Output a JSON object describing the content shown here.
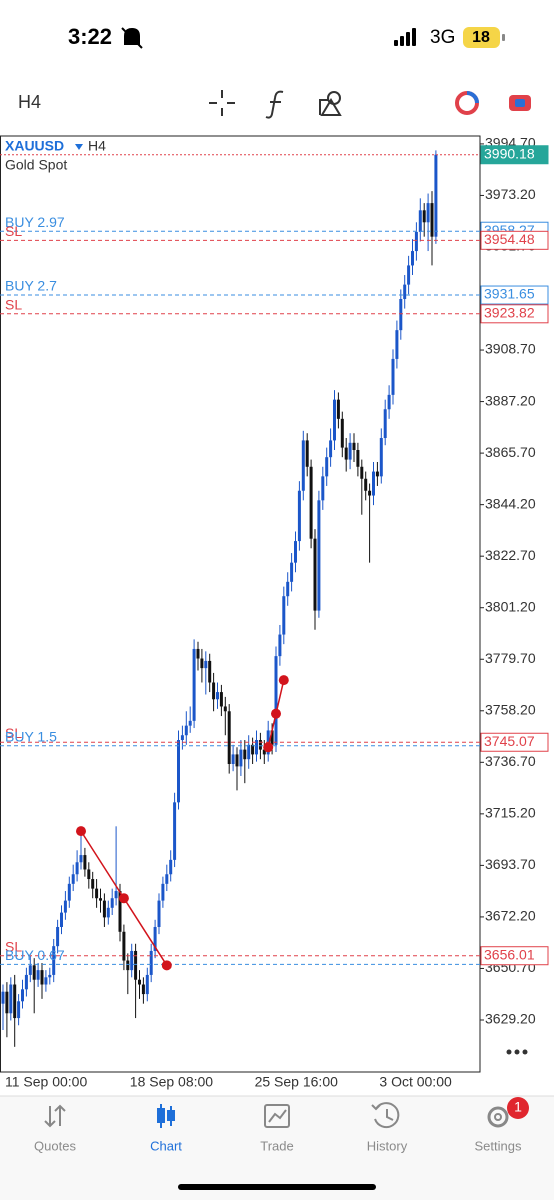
{
  "status_bar": {
    "time": "3:22",
    "network": "3G",
    "battery": "18"
  },
  "toolbar": {
    "timeframe": "H4"
  },
  "chart_data": {
    "type": "candlestick",
    "symbol": "XAUUSD",
    "timeframe": "H4",
    "description": "Gold Spot",
    "up_color": "#1b56c9",
    "down_color": "#111111",
    "categories": [
      "11 Sep 00:00",
      null,
      null,
      null,
      null,
      null,
      null,
      null,
      null,
      null,
      null,
      null,
      null,
      null,
      null,
      null,
      null,
      null,
      null,
      null,
      null,
      null,
      null,
      null,
      null,
      null,
      null,
      null,
      null,
      null,
      null,
      null,
      "18 Sep 08:00",
      null,
      null,
      null,
      null,
      null,
      null,
      null,
      null,
      null,
      null,
      null,
      null,
      null,
      null,
      null,
      null,
      null,
      null,
      null,
      null,
      null,
      null,
      null,
      null,
      null,
      null,
      null,
      null,
      null,
      null,
      null,
      "25 Sep 16:00",
      null,
      null,
      null,
      null,
      null,
      null,
      null,
      null,
      null,
      null,
      null,
      null,
      null,
      null,
      null,
      null,
      null,
      null,
      null,
      null,
      null,
      null,
      null,
      null,
      null,
      null,
      null,
      null,
      null,
      null,
      null,
      "3 Oct 00:00",
      null,
      null,
      null,
      null,
      null,
      null,
      null,
      null,
      null,
      null,
      null,
      null,
      null,
      null,
      null
    ],
    "open": [
      3636,
      3641,
      3632,
      3644,
      3630,
      3637,
      3642,
      3648,
      3652,
      3646,
      3650,
      3644,
      3647,
      3648,
      3660,
      3668,
      3674,
      3679,
      3686,
      3690,
      3695,
      3698,
      3692,
      3688,
      3684,
      3680,
      3679,
      3672,
      3676,
      3680,
      3683,
      3666,
      3654,
      3650,
      3658,
      3646,
      3644,
      3640,
      3648,
      3658,
      3668,
      3679,
      3686,
      3690,
      3696,
      3720,
      3746,
      3748,
      3752,
      3754,
      3784,
      3780,
      3776,
      3779,
      3770,
      3763,
      3766,
      3760,
      3758,
      3736,
      3740,
      3735,
      3742,
      3738,
      3744,
      3740,
      3746,
      3742,
      3740,
      3750,
      3744,
      3781,
      3790,
      3806,
      3812,
      3820,
      3829,
      3850,
      3871,
      3860,
      3830,
      3800,
      3846,
      3856,
      3864,
      3871,
      3888,
      3880,
      3868,
      3863,
      3870,
      3867,
      3860,
      3855,
      3850,
      3848,
      3858,
      3856,
      3872,
      3884,
      3890,
      3905,
      3917,
      3930,
      3936,
      3944,
      3950,
      3958,
      3967,
      3962,
      3970,
      3956
    ],
    "high": [
      3644,
      3645,
      3647,
      3648,
      3640,
      3646,
      3651,
      3656,
      3655,
      3653,
      3653,
      3650,
      3651,
      3663,
      3671,
      3677,
      3683,
      3689,
      3694,
      3700,
      3708,
      3701,
      3695,
      3691,
      3688,
      3684,
      3682,
      3679,
      3684,
      3710,
      3686,
      3669,
      3657,
      3661,
      3661,
      3650,
      3647,
      3651,
      3661,
      3671,
      3682,
      3689,
      3694,
      3700,
      3724,
      3750,
      3752,
      3758,
      3760,
      3788,
      3787,
      3784,
      3783,
      3782,
      3774,
      3770,
      3769,
      3764,
      3761,
      3744,
      3743,
      3746,
      3746,
      3748,
      3747,
      3750,
      3749,
      3746,
      3754,
      3753,
      3785,
      3794,
      3810,
      3816,
      3824,
      3833,
      3854,
      3875,
      3874,
      3863,
      3834,
      3850,
      3860,
      3868,
      3876,
      3892,
      3891,
      3883,
      3872,
      3874,
      3874,
      3870,
      3863,
      3858,
      3853,
      3862,
      3862,
      3876,
      3888,
      3894,
      3909,
      3921,
      3934,
      3940,
      3948,
      3955,
      3962,
      3972,
      3970,
      3974,
      3975,
      3992
    ],
    "low": [
      3625,
      3622,
      3629,
      3618,
      3627,
      3634,
      3639,
      3645,
      3632,
      3643,
      3638,
      3641,
      3644,
      3645,
      3657,
      3665,
      3671,
      3676,
      3683,
      3687,
      3692,
      3689,
      3684,
      3680,
      3676,
      3674,
      3668,
      3669,
      3673,
      3677,
      3662,
      3650,
      3640,
      3647,
      3630,
      3638,
      3636,
      3637,
      3645,
      3655,
      3665,
      3676,
      3683,
      3687,
      3693,
      3717,
      3742,
      3744,
      3749,
      3751,
      3775,
      3770,
      3765,
      3766,
      3758,
      3759,
      3756,
      3748,
      3732,
      3733,
      3725,
      3731,
      3728,
      3734,
      3736,
      3737,
      3738,
      3736,
      3737,
      3740,
      3741,
      3777,
      3786,
      3802,
      3808,
      3816,
      3825,
      3846,
      3856,
      3826,
      3792,
      3797,
      3842,
      3852,
      3860,
      3867,
      3876,
      3864,
      3858,
      3859,
      3862,
      3856,
      3840,
      3846,
      3820,
      3844,
      3852,
      3853,
      3869,
      3880,
      3886,
      3901,
      3913,
      3926,
      3932,
      3940,
      3946,
      3954,
      3956,
      3950,
      3944,
      3953
    ],
    "close": [
      3641,
      3632,
      3644,
      3630,
      3637,
      3642,
      3648,
      3652,
      3646,
      3650,
      3644,
      3647,
      3648,
      3660,
      3668,
      3674,
      3679,
      3686,
      3690,
      3695,
      3698,
      3692,
      3688,
      3684,
      3680,
      3679,
      3672,
      3676,
      3680,
      3683,
      3666,
      3654,
      3650,
      3658,
      3646,
      3644,
      3640,
      3648,
      3658,
      3668,
      3679,
      3686,
      3690,
      3696,
      3720,
      3746,
      3748,
      3752,
      3754,
      3784,
      3780,
      3776,
      3779,
      3770,
      3763,
      3766,
      3760,
      3758,
      3736,
      3740,
      3735,
      3742,
      3738,
      3744,
      3740,
      3746,
      3742,
      3740,
      3750,
      3744,
      3781,
      3790,
      3806,
      3812,
      3820,
      3829,
      3850,
      3871,
      3860,
      3830,
      3800,
      3846,
      3856,
      3864,
      3871,
      3888,
      3880,
      3868,
      3863,
      3870,
      3867,
      3860,
      3855,
      3850,
      3848,
      3858,
      3856,
      3872,
      3884,
      3890,
      3905,
      3917,
      3930,
      3936,
      3944,
      3950,
      3958,
      3967,
      3962,
      3970,
      3956,
      3990.18
    ],
    "ylim": [
      3607.5,
      3998.0
    ],
    "yticks": [
      {
        "value": 3994.7,
        "label": "3994.70"
      },
      {
        "value": 3973.2,
        "label": "3973.20"
      },
      {
        "value": 3951.7,
        "label": "3951.70"
      },
      {
        "value": 3930.2,
        "label": "3930.20"
      },
      {
        "value": 3908.7,
        "label": "3908.70"
      },
      {
        "value": 3887.2,
        "label": "3887.20"
      },
      {
        "value": 3865.7,
        "label": "3865.70"
      },
      {
        "value": 3844.2,
        "label": "3844.20"
      },
      {
        "value": 3822.7,
        "label": "3822.70"
      },
      {
        "value": 3801.2,
        "label": "3801.20"
      },
      {
        "value": 3779.7,
        "label": "3779.70"
      },
      {
        "value": 3758.2,
        "label": "3758.20"
      },
      {
        "value": 3736.7,
        "label": "3736.70"
      },
      {
        "value": 3715.2,
        "label": "3715.20"
      },
      {
        "value": 3693.7,
        "label": "3693.70"
      },
      {
        "value": 3672.2,
        "label": "3672.20"
      },
      {
        "value": 3650.7,
        "label": "3650.70"
      },
      {
        "value": 3629.2,
        "label": "3629.20"
      }
    ],
    "bid": {
      "value": 3990.18,
      "color": "#26a69a",
      "line_color": "#e0414a"
    },
    "levels": [
      {
        "label": "BUY 2.97",
        "value": 3958.27,
        "color": "#3a8ee0",
        "tag": true
      },
      {
        "label": "SL",
        "value": 3954.48,
        "color": "#e0414a",
        "tag": true
      },
      {
        "label": "BUY 2.7",
        "value": 3931.65,
        "color": "#3a8ee0",
        "tag": true
      },
      {
        "label": "SL",
        "value": 3923.82,
        "color": "#e0414a",
        "tag": true
      },
      {
        "label": "SL",
        "value": 3745.07,
        "color": "#e0414a",
        "tag": true
      },
      {
        "label": "BUY 1.5",
        "value": 3743.6,
        "color": "#3a8ee0",
        "tag": false
      },
      {
        "label": "SL",
        "value": 3656.01,
        "color": "#e0414a",
        "tag": true
      },
      {
        "label": "BUY 0.67",
        "value": 3652.4,
        "color": "#3a8ee0",
        "tag": false
      }
    ],
    "trades": [
      {
        "index": [
          20,
          31,
          42
        ],
        "price": [
          3708,
          3680,
          3652
        ],
        "color": "#d2141c"
      },
      {
        "index": [
          68,
          70,
          72
        ],
        "price": [
          3743,
          3757,
          3771
        ],
        "color": "#d2141c"
      }
    ]
  },
  "tabs": [
    {
      "label": "Quotes"
    },
    {
      "label": "Chart",
      "active": true
    },
    {
      "label": "Trade"
    },
    {
      "label": "History"
    },
    {
      "label": "Settings",
      "badge": "1"
    }
  ]
}
